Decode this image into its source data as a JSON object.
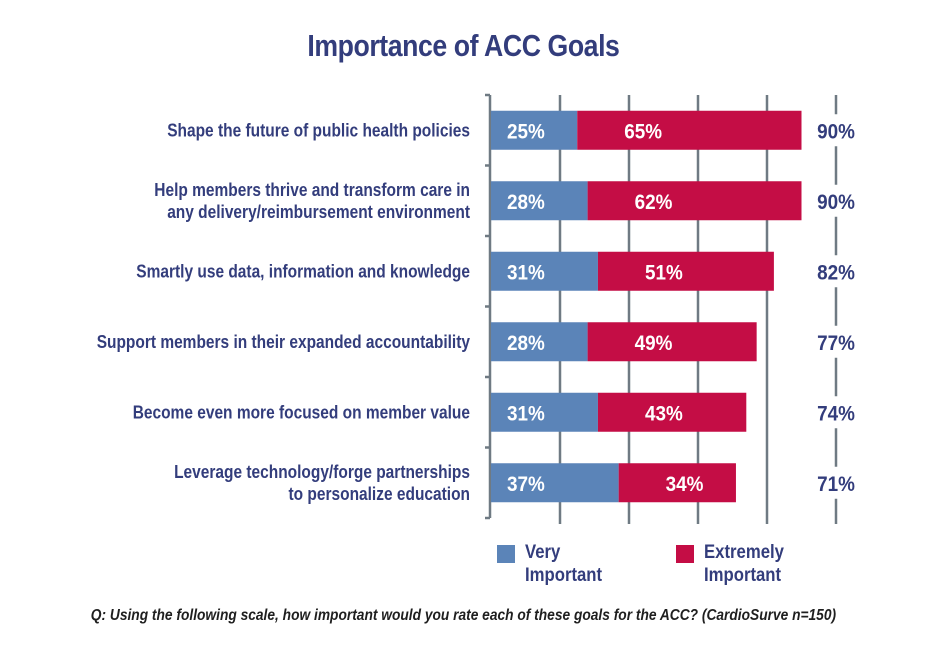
{
  "chart_data": {
    "type": "bar",
    "orientation": "horizontal",
    "stacked": true,
    "title": "Importance of ACC Goals",
    "categories": [
      [
        "Shape the future of public health policies"
      ],
      [
        "Help members thrive and transform care in",
        "any delivery/reimbursement environment"
      ],
      [
        "Smartly use data, information and knowledge"
      ],
      [
        "Support members in their expanded accountability"
      ],
      [
        "Become even more focused on member value"
      ],
      [
        "Leverage technology/forge partnerships",
        "to personalize education"
      ]
    ],
    "series": [
      {
        "name": "Very Important",
        "color": "#5b84b8",
        "values": [
          25,
          28,
          31,
          28,
          31,
          37
        ]
      },
      {
        "name": "Extremely Important",
        "color": "#c40d45",
        "values": [
          65,
          62,
          51,
          49,
          43,
          34
        ]
      }
    ],
    "totals": [
      90,
      90,
      82,
      77,
      74,
      71
    ],
    "value_suffix": "%",
    "xlim": [
      0,
      100
    ],
    "gridlines_at": [
      20,
      40,
      60,
      80,
      100
    ],
    "grid": true,
    "xlabel": "",
    "ylabel": "",
    "legend_position": "bottom",
    "footnote": "Q: Using the following scale, how important would you rate each of these goals for the ACC? (CardioSurve n=150)"
  },
  "legend": {
    "items": [
      {
        "line1": "Very",
        "line2": "Important",
        "color": "#5b84b8"
      },
      {
        "line1": "Extremely",
        "line2": "Important",
        "color": "#c40d45"
      }
    ]
  },
  "colors": {
    "text": "#333d7c",
    "grid": "#6f7a83"
  }
}
